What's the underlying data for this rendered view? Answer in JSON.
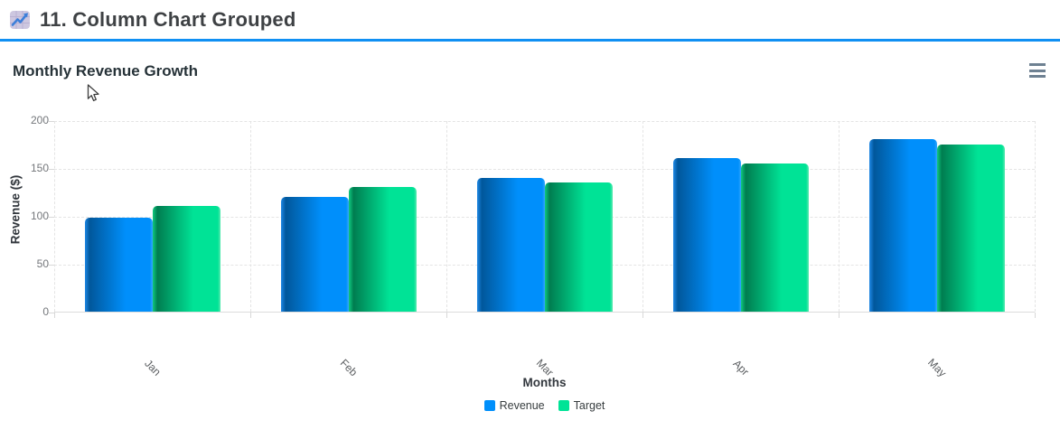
{
  "header": {
    "title": "11. Column Chart Grouped",
    "icon": "chart-increasing-icon",
    "accent_color": "#1090F3"
  },
  "chart": {
    "menu_icon": "hamburger-menu-icon"
  },
  "chart_data": {
    "type": "bar",
    "title": "Monthly Revenue Growth",
    "categories": [
      "Jan",
      "Feb",
      "Mar",
      "Apr",
      "May"
    ],
    "series": [
      {
        "name": "Revenue",
        "color": "#008FFB",
        "shade_color": "#01579B",
        "edge_color": "#1E88E5",
        "highlight_color": "#35A7FC",
        "values": [
          98,
          120,
          140,
          160,
          180
        ]
      },
      {
        "name": "Target",
        "color": "#00E396",
        "shade_color": "#007D50",
        "edge_color": "#10C97F",
        "highlight_color": "#5CE9B1",
        "values": [
          110,
          130,
          135,
          155,
          175
        ]
      }
    ],
    "xlabel": "Months",
    "ylabel": "Revenue ($)",
    "ylim": [
      0,
      200
    ],
    "yticks": [
      0,
      50,
      100,
      150,
      200
    ],
    "grid": true,
    "legend_position": "bottom"
  }
}
